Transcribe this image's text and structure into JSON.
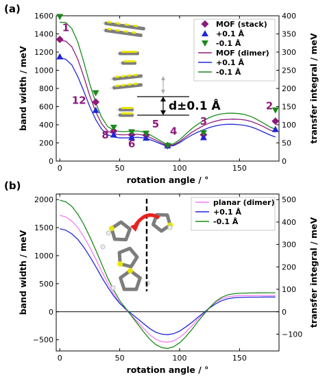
{
  "colors": {
    "purple": "#8e1a7c",
    "blue": "#1f26d6",
    "green": "#1a8a1a",
    "pink": "#f07cf0",
    "yellow": "#e6e600",
    "gray": "#7d7d7d",
    "red": "#e8221e"
  },
  "chart_data": [
    {
      "panel_label": "(a)",
      "type": "line",
      "xlabel": "rotation angle / °",
      "ylabel": "band width / meV",
      "ylabel_right": "transfer integral / meV",
      "xlim": [
        -3,
        183
      ],
      "ylim": [
        0,
        1600
      ],
      "ylim_right": [
        0,
        400
      ],
      "x_ticks": [
        "0",
        "50",
        "100",
        "150"
      ],
      "y_ticks": [
        "0",
        "200",
        "400",
        "600",
        "800",
        "1000",
        "1200",
        "1400",
        "1600"
      ],
      "y_ticks_right": [
        "0",
        "50",
        "100",
        "150",
        "200",
        "250",
        "300",
        "350",
        "400"
      ],
      "legend_position": "top-right",
      "legend": [
        {
          "label": "MOF (stack)",
          "marker": "diamond",
          "color": "#8e1a7c"
        },
        {
          "label": "+0.1 Å",
          "marker": "triangle-up",
          "color": "#1f26d6"
        },
        {
          "label": "-0.1 Å",
          "marker": "triangle-down",
          "color": "#1a8a1a"
        },
        {
          "label": "MOF (dimer)",
          "line": true,
          "color": "#8e1a7c"
        },
        {
          "label": "+0.1 Å",
          "line": true,
          "color": "#1f26d6"
        },
        {
          "label": "-0.1 Å",
          "line": true,
          "color": "#1a8a1a"
        }
      ],
      "scatter_series": [
        {
          "marker": "diamond",
          "color": "#8e1a7c",
          "x": [
            0,
            30,
            45,
            60,
            72,
            90,
            120,
            180
          ],
          "y": [
            1340,
            650,
            330,
            290,
            285,
            170,
            290,
            440
          ]
        },
        {
          "marker": "triangle-up",
          "color": "#1f26d6",
          "x": [
            0,
            30,
            45,
            60,
            72,
            90,
            120,
            180
          ],
          "y": [
            1150,
            560,
            290,
            260,
            255,
            170,
            260,
            350
          ]
        },
        {
          "marker": "triangle-down",
          "color": "#1a8a1a",
          "x": [
            0,
            30,
            45,
            60,
            72,
            90,
            120,
            180
          ],
          "y": [
            1590,
            750,
            370,
            320,
            305,
            170,
            310,
            560
          ]
        }
      ],
      "line_series": [
        {
          "color": "#8e1a7c",
          "x": [
            0,
            5,
            10,
            15,
            20,
            25,
            30,
            35,
            40,
            45,
            50,
            55,
            60,
            65,
            70,
            75,
            80,
            85,
            90,
            95,
            100,
            105,
            110,
            115,
            120,
            125,
            130,
            135,
            140,
            145,
            150,
            155,
            160,
            165,
            170,
            175,
            180
          ],
          "y": [
            1330,
            1320,
            1260,
            1120,
            930,
            720,
            540,
            410,
            330,
            300,
            290,
            290,
            295,
            295,
            285,
            262,
            232,
            198,
            170,
            178,
            215,
            265,
            315,
            355,
            390,
            420,
            440,
            455,
            460,
            462,
            460,
            452,
            435,
            410,
            380,
            345,
            320
          ]
        },
        {
          "color": "#1f26d6",
          "x": [
            0,
            5,
            10,
            15,
            20,
            25,
            30,
            35,
            40,
            45,
            50,
            55,
            60,
            65,
            70,
            75,
            80,
            85,
            90,
            95,
            100,
            105,
            110,
            115,
            120,
            125,
            130,
            135,
            140,
            145,
            150,
            155,
            160,
            165,
            170,
            175,
            180
          ],
          "y": [
            1140,
            1120,
            1060,
            930,
            770,
            600,
            455,
            350,
            290,
            265,
            255,
            255,
            260,
            262,
            255,
            238,
            212,
            185,
            162,
            170,
            202,
            245,
            285,
            318,
            345,
            370,
            388,
            400,
            405,
            405,
            400,
            392,
            375,
            350,
            320,
            290,
            265
          ]
        },
        {
          "color": "#1a8a1a",
          "x": [
            0,
            5,
            10,
            15,
            20,
            25,
            30,
            35,
            40,
            45,
            50,
            55,
            60,
            65,
            70,
            75,
            80,
            85,
            90,
            95,
            100,
            105,
            110,
            115,
            120,
            125,
            130,
            135,
            140,
            145,
            150,
            155,
            160,
            165,
            170,
            175,
            180
          ],
          "y": [
            1530,
            1525,
            1460,
            1310,
            1090,
            850,
            640,
            480,
            380,
            340,
            325,
            325,
            330,
            332,
            320,
            292,
            255,
            215,
            180,
            190,
            235,
            295,
            355,
            405,
            445,
            480,
            505,
            520,
            527,
            527,
            522,
            510,
            488,
            455,
            418,
            378,
            350
          ]
        }
      ],
      "annotations": [
        {
          "text": "1",
          "x": 5,
          "y": 1430
        },
        {
          "text": "12",
          "x": 16,
          "y": 630
        },
        {
          "text": "8",
          "x": 38,
          "y": 250
        },
        {
          "text": "6",
          "x": 60,
          "y": 150
        },
        {
          "text": "5",
          "x": 80,
          "y": 370
        },
        {
          "text": "4",
          "x": 95,
          "y": 290
        },
        {
          "text": "3",
          "x": 120,
          "y": 400
        },
        {
          "text": "2",
          "x": 175,
          "y": 570
        }
      ],
      "inset_label": "d±0.1 Å"
    },
    {
      "panel_label": "(b)",
      "type": "line",
      "xlabel": "rotation angle / °",
      "ylabel": "band width / meV",
      "ylabel_right": "transfer integral / meV",
      "xlim": [
        -3,
        183
      ],
      "ylim": [
        -700,
        2100
      ],
      "ylim_right": [
        -175,
        525
      ],
      "x_ticks": [
        "0",
        "50",
        "100",
        "150"
      ],
      "y_ticks": [
        "−500",
        "0",
        "500",
        "1000",
        "1500",
        "2000"
      ],
      "y_ticks_right": [
        "−100",
        "0",
        "100",
        "200",
        "300",
        "400",
        "500"
      ],
      "legend_position": "top-right",
      "legend": [
        {
          "label": "planar (dimer)",
          "line": true,
          "color": "#f07cf0"
        },
        {
          "label": "+0.1 Å",
          "line": true,
          "color": "#1f26d6"
        },
        {
          "label": "-0.1 Å",
          "line": true,
          "color": "#1a8a1a"
        }
      ],
      "line_series": [
        {
          "color": "#f07cf0",
          "x": [
            0,
            5,
            10,
            15,
            20,
            25,
            30,
            35,
            40,
            45,
            50,
            55,
            60,
            65,
            70,
            75,
            80,
            85,
            90,
            95,
            100,
            105,
            110,
            115,
            120,
            125,
            130,
            135,
            140,
            145,
            150,
            155,
            160,
            165,
            170,
            175,
            180
          ],
          "y": [
            1720,
            1690,
            1620,
            1500,
            1340,
            1150,
            940,
            720,
            510,
            320,
            160,
            40,
            -70,
            -180,
            -300,
            -410,
            -490,
            -535,
            -545,
            -520,
            -460,
            -370,
            -260,
            -140,
            -30,
            80,
            170,
            230,
            265,
            280,
            285,
            287,
            288,
            290,
            290,
            292,
            292
          ]
        },
        {
          "color": "#1f26d6",
          "x": [
            0,
            5,
            10,
            15,
            20,
            25,
            30,
            35,
            40,
            45,
            50,
            55,
            60,
            65,
            70,
            75,
            80,
            85,
            90,
            95,
            100,
            105,
            110,
            115,
            120,
            125,
            130,
            135,
            140,
            145,
            150,
            155,
            160,
            165,
            170,
            175,
            180
          ],
          "y": [
            1480,
            1455,
            1390,
            1290,
            1150,
            985,
            805,
            615,
            440,
            280,
            150,
            50,
            -40,
            -125,
            -215,
            -300,
            -365,
            -400,
            -410,
            -392,
            -345,
            -275,
            -195,
            -105,
            -20,
            65,
            140,
            195,
            230,
            248,
            255,
            258,
            260,
            260,
            262,
            262,
            262
          ]
        },
        {
          "color": "#1a8a1a",
          "x": [
            0,
            5,
            10,
            15,
            20,
            25,
            30,
            35,
            40,
            45,
            50,
            55,
            60,
            65,
            70,
            75,
            80,
            85,
            90,
            95,
            100,
            105,
            110,
            115,
            120,
            125,
            130,
            135,
            140,
            145,
            150,
            155,
            160,
            165,
            170,
            175,
            180
          ],
          "y": [
            1990,
            1960,
            1880,
            1740,
            1560,
            1340,
            1100,
            850,
            600,
            385,
            200,
            60,
            -80,
            -220,
            -360,
            -490,
            -585,
            -640,
            -655,
            -625,
            -555,
            -450,
            -325,
            -185,
            -55,
            70,
            180,
            255,
            300,
            320,
            328,
            332,
            335,
            336,
            337,
            338,
            338
          ]
        }
      ]
    }
  ]
}
